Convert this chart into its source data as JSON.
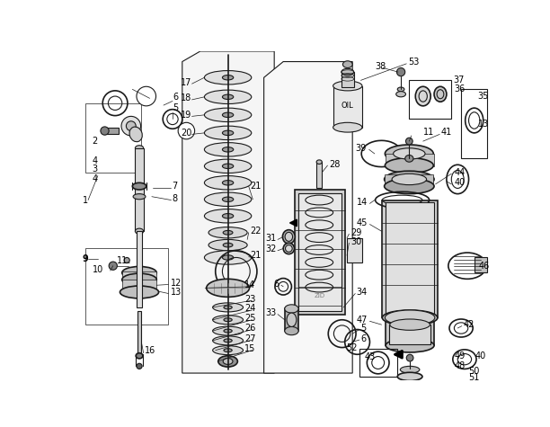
{
  "bg_color": "#ffffff",
  "lc": "#1a1a1a",
  "fig_w": 6.12,
  "fig_h": 4.75,
  "dpi": 100
}
